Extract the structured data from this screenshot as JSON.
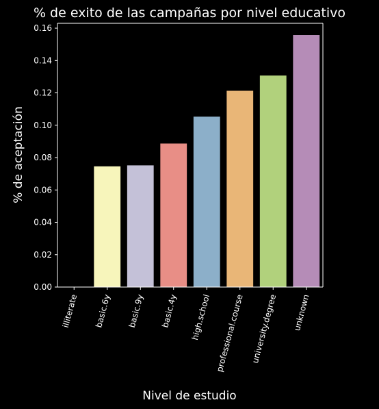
{
  "chart_data": {
    "type": "bar",
    "title": "% de exito de las campañas por nivel educativo",
    "xlabel": "Nivel de estudio",
    "ylabel": "% de aceptación",
    "categories": [
      "illiterate",
      "basic.6y",
      "basic.9y",
      "basic.4y",
      "high.school",
      "professional.course",
      "university.degree",
      "unknown"
    ],
    "values": [
      0.0,
      0.0746,
      0.0752,
      0.0887,
      0.1053,
      0.1213,
      0.1307,
      0.1558
    ],
    "colors": [
      "#8dd3c7",
      "#f7f5bb",
      "#c4c1d8",
      "#e88e86",
      "#8cafc9",
      "#e9b677",
      "#b1d17c",
      "#b58cb7"
    ],
    "ylim": [
      0,
      0.163
    ],
    "yticks": [
      "0.00",
      "0.02",
      "0.04",
      "0.06",
      "0.08",
      "0.10",
      "0.12",
      "0.14",
      "0.16"
    ],
    "grid": false,
    "legend": "none",
    "background": "#000000",
    "foreground": "#ffffff"
  }
}
